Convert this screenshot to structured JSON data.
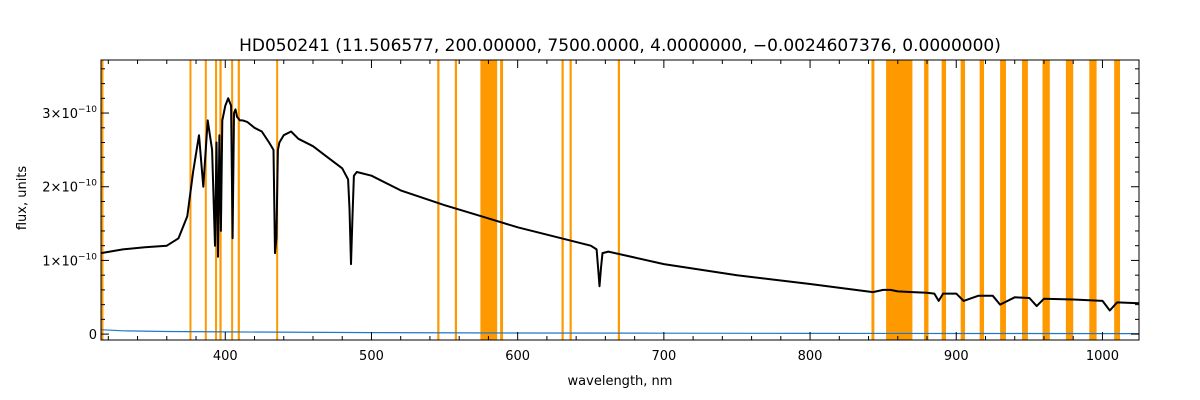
{
  "chart_data": {
    "type": "line",
    "title": "HD050241   (11.506577, 200.00000, 7500.0000, 4.0000000, −0.0024607376, 0.0000000)",
    "xlabel": "wavelength, nm",
    "ylabel": "flux, units",
    "xlim": [
      315,
      1025
    ],
    "ylim": [
      -8e-12,
      3.72e-10
    ],
    "x_ticks": [
      400,
      500,
      600,
      700,
      800,
      900,
      1000
    ],
    "y_ticks": [
      {
        "value": 0,
        "mantissa": "0",
        "exponent": ""
      },
      {
        "value": 1e-10,
        "mantissa": "1×10",
        "exponent": "−10"
      },
      {
        "value": 2e-10,
        "mantissa": "2×10",
        "exponent": "−10"
      },
      {
        "value": 3e-10,
        "mantissa": "3×10",
        "exponent": "−10"
      }
    ],
    "grid": false,
    "legend": "none",
    "colors": {
      "spectrum": "#000000",
      "error": "#1f78c8",
      "mask": "#ff9900"
    },
    "masked_regions": [
      [
        375.5,
        376.5
      ],
      [
        386,
        387
      ],
      [
        393,
        394
      ],
      [
        396,
        397.5
      ],
      [
        404,
        405
      ],
      [
        408.5,
        410
      ],
      [
        434.8,
        436
      ],
      [
        545,
        546.5
      ],
      [
        557,
        558.5
      ],
      [
        574.5,
        586
      ],
      [
        588,
        590
      ],
      [
        630,
        631.5
      ],
      [
        635.5,
        637
      ],
      [
        668.5,
        670
      ],
      [
        842,
        844
      ],
      [
        852,
        870
      ],
      [
        878,
        881
      ],
      [
        890,
        893
      ],
      [
        903,
        906
      ],
      [
        916,
        919
      ],
      [
        930,
        934
      ],
      [
        945,
        949
      ],
      [
        959,
        964
      ],
      [
        975,
        980
      ],
      [
        991,
        996
      ],
      [
        1008,
        1012
      ]
    ],
    "series": [
      {
        "name": "",
        "x": [
          315,
          330,
          345,
          360,
          368,
          374,
          378,
          382,
          385,
          388,
          391,
          393,
          394,
          395,
          396,
          397,
          398,
          400,
          402,
          404,
          405,
          406,
          407,
          408,
          410,
          412,
          415,
          420,
          425,
          430,
          433,
          434,
          435,
          436,
          437,
          440,
          445,
          450,
          460,
          470,
          480,
          484,
          485,
          486,
          487,
          488,
          490,
          500,
          520,
          550,
          575,
          600,
          630,
          650,
          654,
          655,
          656,
          657,
          658,
          662,
          700,
          750,
          800,
          843,
          850,
          855,
          860,
          870,
          880,
          885,
          888,
          891,
          900,
          905,
          915,
          925,
          930,
          940,
          950,
          955,
          960,
          980,
          1000,
          1005,
          1010,
          1025
        ],
        "y": [
          1.1e-10,
          1.15e-10,
          1.18e-10,
          1.2e-10,
          1.3e-10,
          1.6e-10,
          2.2e-10,
          2.7e-10,
          2e-10,
          2.9e-10,
          2.5e-10,
          1.2e-10,
          2.6e-10,
          1.05e-10,
          2.7e-10,
          1.4e-10,
          2.9e-10,
          3.1e-10,
          3.2e-10,
          3.1e-10,
          1.3e-10,
          3e-10,
          3.05e-10,
          2.95e-10,
          2.9e-10,
          2.9e-10,
          2.88e-10,
          2.8e-10,
          2.75e-10,
          2.6e-10,
          2.5e-10,
          1.1e-10,
          1.3e-10,
          2.5e-10,
          2.6e-10,
          2.7e-10,
          2.75e-10,
          2.65e-10,
          2.55e-10,
          2.4e-10,
          2.25e-10,
          2.1e-10,
          1.7e-10,
          9.5e-11,
          1.6e-10,
          2.15e-10,
          2.2e-10,
          2.15e-10,
          1.95e-10,
          1.75e-10,
          1.6e-10,
          1.45e-10,
          1.3e-10,
          1.2e-10,
          1.15e-10,
          9e-11,
          6.5e-11,
          9e-11,
          1.1e-10,
          1.12e-10,
          9.5e-11,
          8e-11,
          6.8e-11,
          5.7e-11,
          6e-11,
          6e-11,
          5.8e-11,
          5.7e-11,
          5.6e-11,
          5.5e-11,
          4.5e-11,
          5.5e-11,
          5.5e-11,
          4.5e-11,
          5.2e-11,
          5.2e-11,
          4e-11,
          5e-11,
          4.9e-11,
          3.8e-11,
          4.8e-11,
          4.7e-11,
          4.5e-11,
          3.2e-11,
          4.3e-11,
          4.2e-11
        ]
      },
      {
        "name": "",
        "x": [
          315,
          330,
          360,
          400,
          500,
          600,
          700,
          800,
          900,
          1025
        ],
        "y": [
          6e-12,
          4.5e-12,
          3.5e-12,
          3e-12,
          2e-12,
          1.5e-12,
          1.2e-12,
          1e-12,
          8e-13,
          7e-13
        ]
      }
    ]
  }
}
